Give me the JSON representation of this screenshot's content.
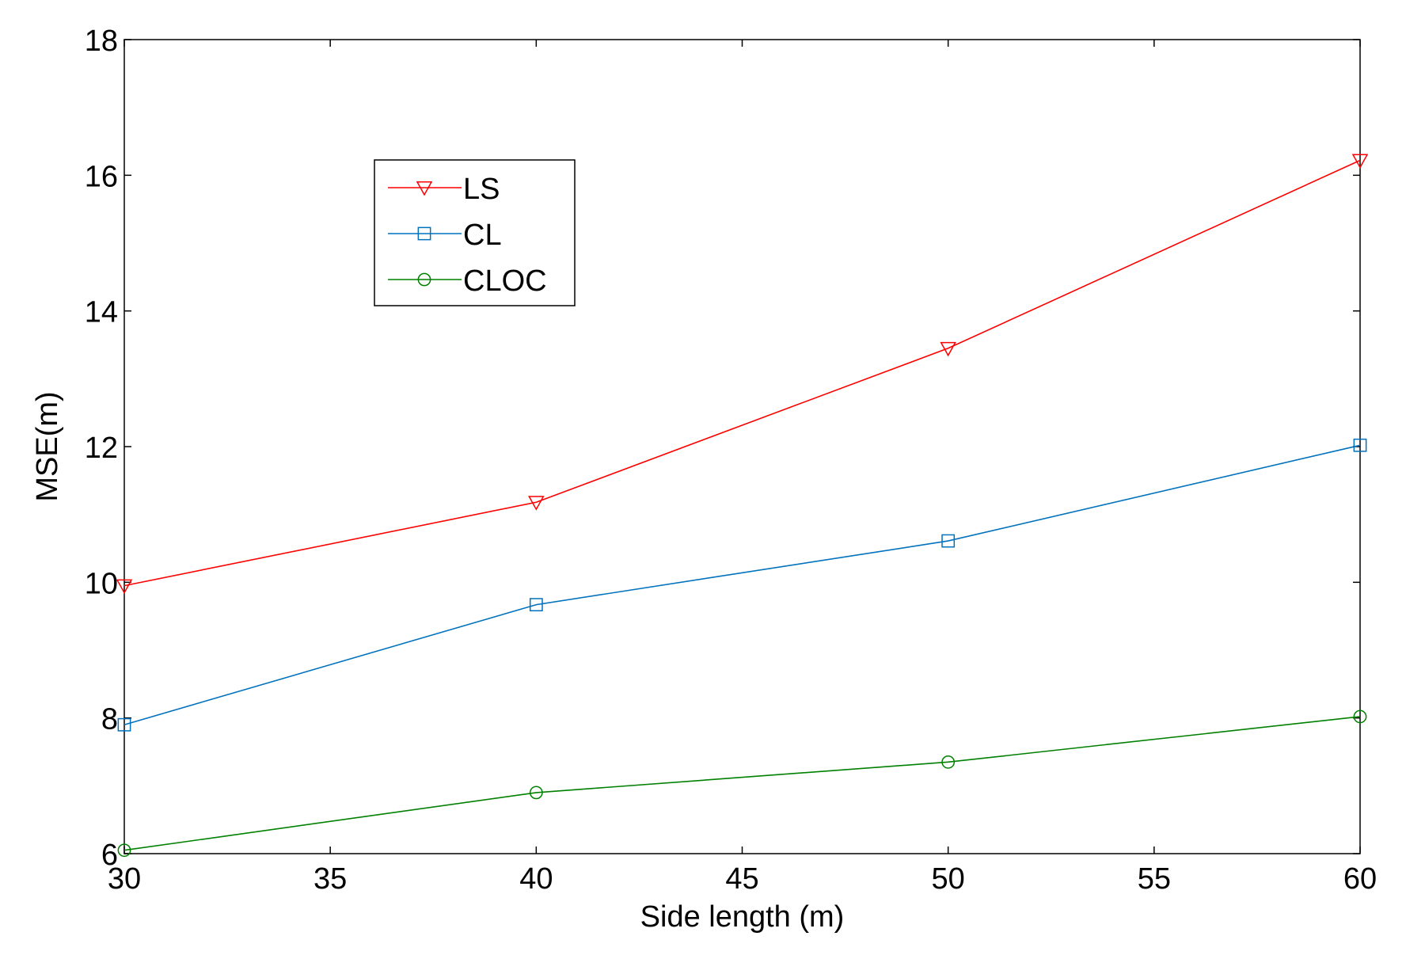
{
  "chart_data": {
    "type": "line",
    "title": "",
    "xlabel": "Side length (m)",
    "ylabel": "MSE(m)",
    "xlim": [
      30,
      60
    ],
    "ylim": [
      6,
      18
    ],
    "xticks": [
      30,
      35,
      40,
      45,
      50,
      55,
      60
    ],
    "yticks": [
      6,
      8,
      10,
      12,
      14,
      16,
      18
    ],
    "grid": false,
    "legend_position": "upper-left",
    "x": [
      30,
      40,
      50,
      60
    ],
    "series": [
      {
        "name": "LS",
        "values": [
          9.95,
          11.18,
          13.45,
          16.22
        ],
        "color": "#ff0000",
        "marker": "triangle-down"
      },
      {
        "name": "CL",
        "values": [
          7.9,
          9.67,
          10.61,
          12.02
        ],
        "color": "#0072bd",
        "marker": "square"
      },
      {
        "name": "CLOC",
        "values": [
          6.05,
          6.9,
          7.35,
          8.02
        ],
        "color": "#008000",
        "marker": "circle"
      }
    ]
  }
}
